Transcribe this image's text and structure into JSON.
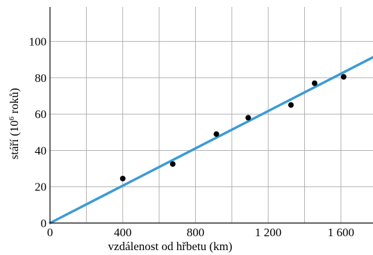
{
  "chart_data": {
    "type": "scatter",
    "xlabel": "vzdálenost od hřbetu (km)",
    "ylabel_main": "stáří (10",
    "ylabel_sup": "6",
    "ylabel_end": " roků)",
    "xlim": [
      0,
      1780
    ],
    "ylim": [
      0,
      119
    ],
    "grid": true,
    "x_ticks": [
      0,
      200,
      400,
      600,
      800,
      1000,
      1200,
      1400,
      1600
    ],
    "x_tick_labels": [
      "0",
      "",
      "400",
      "",
      "800",
      "",
      "1 200",
      "",
      "1 600"
    ],
    "y_ticks": [
      0,
      20,
      40,
      60,
      80,
      100
    ],
    "y_tick_labels": [
      "0",
      "20",
      "40",
      "60",
      "80",
      "100"
    ],
    "points": [
      {
        "x": 400,
        "y": 24.5
      },
      {
        "x": 675,
        "y": 32.5
      },
      {
        "x": 915,
        "y": 49
      },
      {
        "x": 1090,
        "y": 58
      },
      {
        "x": 1325,
        "y": 65
      },
      {
        "x": 1455,
        "y": 77
      },
      {
        "x": 1615,
        "y": 80.5
      }
    ],
    "fit_line": {
      "x": [
        0,
        1780
      ],
      "y": [
        0,
        91.5
      ]
    },
    "colors": {
      "points": "#000000",
      "fit_line": "#3b9bd6",
      "grid": "#b0b0b0",
      "axes": "#000000"
    }
  }
}
